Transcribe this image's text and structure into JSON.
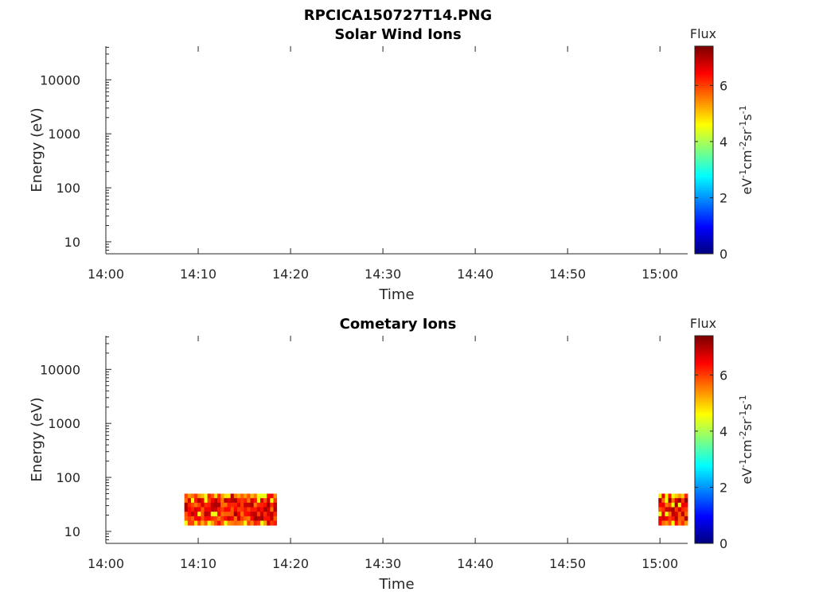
{
  "figure_title": "RPCICA150727T14.PNG",
  "colors": {
    "axis": "#262626",
    "background": "#ffffff"
  },
  "colorbar": {
    "colormap": "jet",
    "range": [
      0,
      7.4
    ]
  },
  "chart_data": [
    {
      "type": "heatmap",
      "title": "Solar Wind Ions",
      "xlabel": "Time",
      "ylabel": "Energy (eV)",
      "x_axis": {
        "type": "time",
        "range": [
          "14:00",
          "15:03"
        ],
        "ticks": [
          "14:00",
          "14:10",
          "14:20",
          "14:30",
          "14:40",
          "14:50",
          "15:00"
        ]
      },
      "y_axis": {
        "scale": "log",
        "range": [
          6,
          42000
        ],
        "ticks": [
          10,
          100,
          1000,
          10000
        ],
        "tick_labels": [
          "10",
          "100",
          "1000",
          "10000"
        ]
      },
      "colorbar": {
        "label": "Flux",
        "unit_label": "eV-1cm-2sr-1s-1",
        "range": [
          0,
          7.4
        ],
        "ticks": [
          0,
          2,
          4,
          6
        ],
        "tick_labels": [
          "0",
          "2",
          "4",
          "6"
        ]
      },
      "regions": []
    },
    {
      "type": "heatmap",
      "title": "Cometary Ions",
      "xlabel": "Time",
      "ylabel": "Energy (eV)",
      "x_axis": {
        "type": "time",
        "range": [
          "14:00",
          "15:03"
        ],
        "ticks": [
          "14:00",
          "14:10",
          "14:20",
          "14:30",
          "14:40",
          "14:50",
          "15:00"
        ]
      },
      "y_axis": {
        "scale": "log",
        "range": [
          6,
          42000
        ],
        "ticks": [
          10,
          100,
          1000,
          10000
        ],
        "tick_labels": [
          "10",
          "100",
          "1000",
          "10000"
        ]
      },
      "colorbar": {
        "label": "Flux",
        "unit_label": "eV-1cm-2sr-1s-1",
        "range": [
          0,
          7.4
        ],
        "ticks": [
          0,
          2,
          4,
          6
        ],
        "tick_labels": [
          "0",
          "2",
          "4",
          "6"
        ]
      },
      "regions": [
        {
          "time_start": "14:08:30",
          "time_end": "14:18:30",
          "energy_range_eV": [
            13,
            50
          ],
          "flux_range": [
            4.5,
            7.2
          ]
        },
        {
          "time_start": "14:59:50",
          "time_end": "15:03:00",
          "energy_range_eV": [
            13,
            50
          ],
          "flux_range": [
            4.5,
            7.2
          ]
        }
      ]
    }
  ]
}
